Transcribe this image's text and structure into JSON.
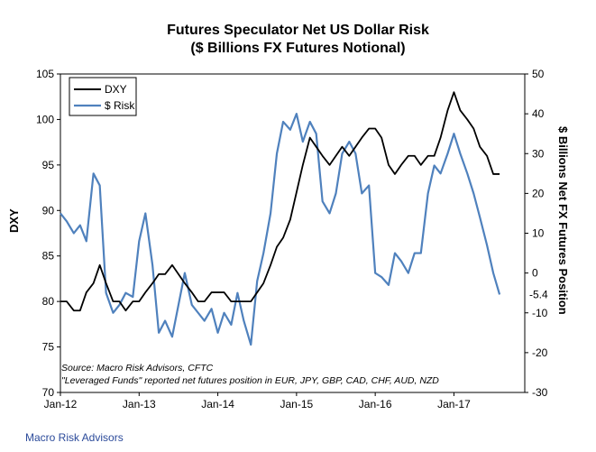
{
  "chart_data": {
    "type": "line",
    "title": "Futures Speculator Net US Dollar Risk",
    "subtitle": "($ Billions FX Futures Notional)",
    "ylabel_left": "DXY",
    "ylabel_right": "$ Billions  Net FX Futures Position",
    "ylim_left": [
      70,
      105
    ],
    "ylim_right": [
      -30,
      50
    ],
    "yticks_left": [
      "70",
      "75",
      "80",
      "85",
      "90",
      "95",
      "100",
      "105"
    ],
    "yticks_right": [
      "-30",
      "-20",
      "-10",
      "0",
      "10",
      "20",
      "30",
      "40",
      "50"
    ],
    "xticks": [
      "Jan-12",
      "Jan-13",
      "Jan-14",
      "Jan-15",
      "Jan-16",
      "Jan-17"
    ],
    "x_range": [
      2012.0,
      2017.9
    ],
    "annotation": "-5.4",
    "legend": {
      "placement": "top-left",
      "entries": [
        "DXY",
        "$ Risk"
      ]
    },
    "grid": false,
    "colors": {
      "dxy": "#000000",
      "risk": "#4f81bd"
    },
    "series": [
      {
        "name": "DXY",
        "axis": "left",
        "x": [
          2012.0,
          2012.08,
          2012.17,
          2012.25,
          2012.33,
          2012.42,
          2012.5,
          2012.58,
          2012.67,
          2012.75,
          2012.83,
          2012.92,
          2013.0,
          2013.08,
          2013.17,
          2013.25,
          2013.33,
          2013.42,
          2013.5,
          2013.58,
          2013.67,
          2013.75,
          2013.83,
          2013.92,
          2014.0,
          2014.08,
          2014.17,
          2014.25,
          2014.33,
          2014.42,
          2014.5,
          2014.58,
          2014.67,
          2014.75,
          2014.83,
          2014.92,
          2015.0,
          2015.08,
          2015.17,
          2015.25,
          2015.33,
          2015.42,
          2015.5,
          2015.58,
          2015.67,
          2015.75,
          2015.83,
          2015.92,
          2016.0,
          2016.08,
          2016.17,
          2016.25,
          2016.33,
          2016.42,
          2016.5,
          2016.58,
          2016.67,
          2016.75,
          2016.83,
          2016.92,
          2017.0,
          2017.08,
          2017.17,
          2017.25,
          2017.33,
          2017.42,
          2017.5,
          2017.58
        ],
        "values": [
          80,
          80,
          79,
          79,
          81,
          82,
          84,
          82,
          80,
          80,
          79,
          80,
          80,
          81,
          82,
          83,
          83,
          84,
          83,
          82,
          81,
          80,
          80,
          81,
          81,
          81,
          80,
          80,
          80,
          80,
          81,
          82,
          84,
          86,
          87,
          89,
          92,
          95,
          98,
          97,
          96,
          95,
          96,
          97,
          96,
          97,
          98,
          99,
          99,
          98,
          95,
          94,
          95,
          96,
          96,
          95,
          96,
          96,
          98,
          101,
          103,
          101,
          100,
          99,
          97,
          96,
          94,
          94
        ]
      },
      {
        "name": "$ Risk",
        "axis": "right",
        "x": [
          2012.0,
          2012.08,
          2012.17,
          2012.25,
          2012.33,
          2012.42,
          2012.5,
          2012.58,
          2012.67,
          2012.75,
          2012.83,
          2012.92,
          2013.0,
          2013.08,
          2013.17,
          2013.25,
          2013.33,
          2013.42,
          2013.5,
          2013.58,
          2013.67,
          2013.75,
          2013.83,
          2013.92,
          2014.0,
          2014.08,
          2014.17,
          2014.25,
          2014.33,
          2014.42,
          2014.5,
          2014.58,
          2014.67,
          2014.75,
          2014.83,
          2014.92,
          2015.0,
          2015.08,
          2015.17,
          2015.25,
          2015.33,
          2015.42,
          2015.5,
          2015.58,
          2015.67,
          2015.75,
          2015.83,
          2015.92,
          2016.0,
          2016.08,
          2016.17,
          2016.25,
          2016.33,
          2016.42,
          2016.5,
          2016.58,
          2016.67,
          2016.75,
          2016.83,
          2016.92,
          2017.0,
          2017.08,
          2017.17,
          2017.25,
          2017.33,
          2017.42,
          2017.5,
          2017.58
        ],
        "values": [
          15,
          13,
          10,
          12,
          8,
          25,
          22,
          -5,
          -10,
          -8,
          -5,
          -6,
          8,
          15,
          2,
          -15,
          -12,
          -16,
          -8,
          0,
          -8,
          -10,
          -12,
          -9,
          -15,
          -10,
          -13,
          -5,
          -12,
          -18,
          -2,
          5,
          15,
          30,
          38,
          36,
          40,
          33,
          38,
          35,
          18,
          15,
          20,
          30,
          33,
          30,
          20,
          22,
          0,
          -1,
          -3,
          5,
          3,
          0,
          5,
          5,
          20,
          27,
          25,
          30,
          35,
          30,
          25,
          20,
          14,
          7,
          0,
          -5.4
        ]
      }
    ]
  },
  "source_line1": "Source: Macro Risk Advisors, CFTC",
  "source_line2": "\"Leveraged Funds\" reported net futures position in EUR, JPY, GBP, CAD, CHF, AUD, NZD",
  "footer": "Macro Risk Advisors"
}
